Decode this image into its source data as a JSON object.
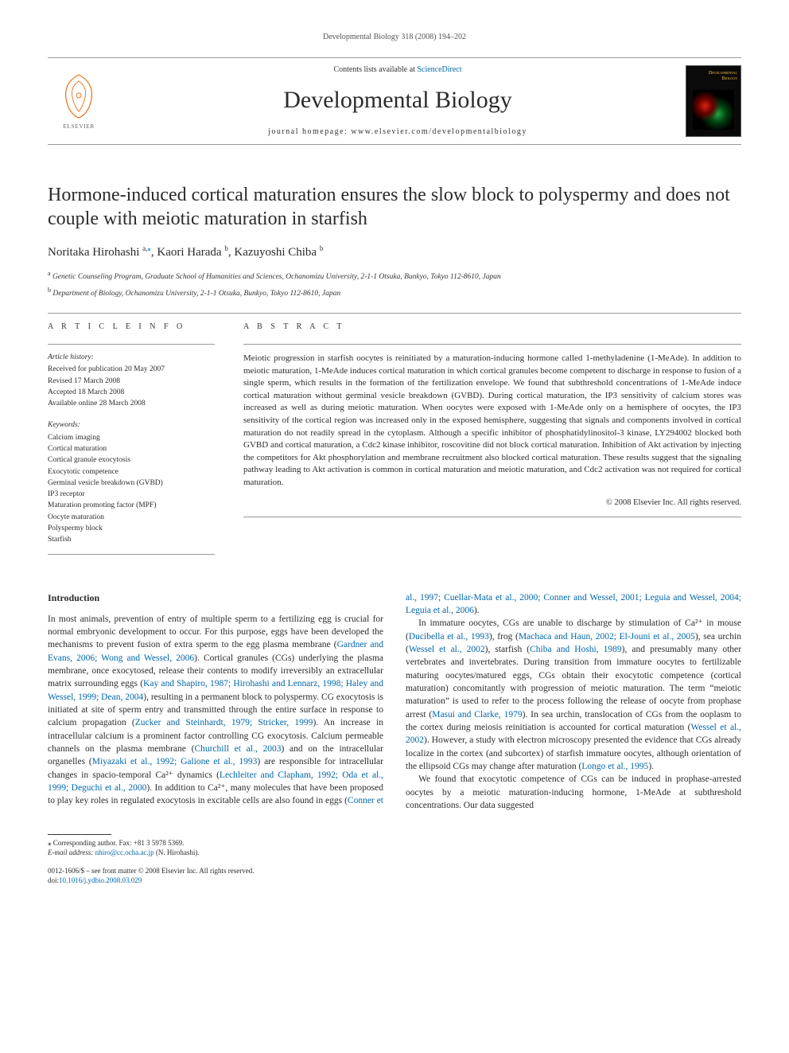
{
  "running_header": "Developmental Biology 318 (2008) 194–202",
  "masthead": {
    "contents_prefix": "Contents lists available at ",
    "contents_link": "ScienceDirect",
    "journal_name": "Developmental Biology",
    "homepage_prefix": "journal homepage: ",
    "homepage": "www.elsevier.com/developmentalbiology",
    "publisher_logo_label": "ELSEVIER",
    "cover_title_line1": "Developmental",
    "cover_title_line2": "Biology"
  },
  "article": {
    "title": "Hormone-induced cortical maturation ensures the slow block to polyspermy and does not couple with meiotic maturation in starfish",
    "authors_html": "Noritaka Hirohashi <sup>a,</sup><sup class=\"corr\">⁎</sup>, Kaori Harada <sup>b</sup>, Kazuyoshi Chiba <sup>b</sup>",
    "affiliations": [
      {
        "sup": "a",
        "text": "Genetic Counseling Program, Graduate School of Humanities and Sciences, Ochanomizu University, 2-1-1 Otsuka, Bunkyo, Tokyo 112-8610, Japan"
      },
      {
        "sup": "b",
        "text": "Department of Biology, Ochanomizu University, 2-1-1 Otsuka, Bunkyo, Tokyo 112-8610, Japan"
      }
    ]
  },
  "article_info": {
    "heading": "A R T I C L E   I N F O",
    "history_label": "Article history:",
    "history": [
      "Received for publication 20 May 2007",
      "Revised 17 March 2008",
      "Accepted 18 March 2008",
      "Available online 28 March 2008"
    ],
    "keywords_label": "Keywords:",
    "keywords": [
      "Calcium imaging",
      "Cortical maturation",
      "Cortical granule exocytosis",
      "Exocytotic competence",
      "Germinal vesicle breakdown (GVBD)",
      "IP3 receptor",
      "Maturation promoting factor (MPF)",
      "Oocyte maturation",
      "Polyspermy block",
      "Starfish"
    ]
  },
  "abstract": {
    "heading": "A B S T R A C T",
    "text": "Meiotic progression in starfish oocytes is reinitiated by a maturation-inducing hormone called 1-methyladenine (1-MeAde). In addition to meiotic maturation, 1-MeAde induces cortical maturation in which cortical granules become competent to discharge in response to fusion of a single sperm, which results in the formation of the fertilization envelope. We found that subthreshold concentrations of 1-MeAde induce cortical maturation without germinal vesicle breakdown (GVBD). During cortical maturation, the IP3 sensitivity of calcium stores was increased as well as during meiotic maturation. When oocytes were exposed with 1-MeAde only on a hemisphere of oocytes, the IP3 sensitivity of the cortical region was increased only in the exposed hemisphere, suggesting that signals and components involved in cortical maturation do not readily spread in the cytoplasm. Although a specific inhibitor of phosphatidylinositol-3 kinase, LY294002 blocked both GVBD and cortical maturation, a Cdc2 kinase inhibitor, roscovitine did not block cortical maturation. Inhibition of Akt activation by injecting the competitors for Akt phosphorylation and membrane recruitment also blocked cortical maturation. These results suggest that the signaling pathway leading to Akt activation is common in cortical maturation and meiotic maturation, and Cdc2 activation was not required for cortical maturation.",
    "copyright": "© 2008 Elsevier Inc. All rights reserved."
  },
  "body": {
    "intro_heading": "Introduction",
    "p1_a": "In most animals, prevention of entry of multiple sperm to a fertilizing egg is crucial for normal embryonic development to occur. For this purpose, eggs have been developed the mechanisms to prevent fusion of extra sperm to the egg plasma membrane (",
    "r1": "Gardner and Evans, 2006; Wong and Wessel, 2006",
    "p1_b": "). Cortical granules (CGs) underlying the plasma membrane, once exocytosed, release their contents to modify irreversibly an extracellular matrix surrounding eggs (",
    "r2": "Kay and Shapiro, 1987; Hirohashi and Lennarz, 1998; Haley and Wessel, 1999; Dean, 2004",
    "p1_c": "), resulting in a permanent block to polyspermy. CG exocytosis is initiated at site of sperm entry and transmitted through the entire surface in response to calcium propagation (",
    "r3": "Zucker and Steinhardt, 1979; Stricker, 1999",
    "p1_d": "). An increase in intracellular calcium is a prominent factor controlling CG exocytosis. Calcium permeable channels on the plasma membrane (",
    "r4": "Churchill et al., 2003",
    "p1_e": ") and on the intracellular organelles (",
    "r5": "Miyazaki et al., 1992; Galione et al., 1993",
    "p1_f": ") are responsible for intracellular changes in spacio-temporal Ca²⁺ dynamics (",
    "r6": "Lechleiter and Clapham, 1992; Oda et al., 1999; Deguchi et al., 2000",
    "p1_g": "). In addition to Ca²⁺, many molecules that have been proposed to play key roles in regulated exocytosis in excitable cells are also found in eggs (",
    "r7": "Conner et al., 1997; Cuellar-Mata et al., 2000; Conner and Wessel, 2001; Leguia and Wessel, 2004; Leguia et al., 2006",
    "p1_h": ").",
    "p2_a": "In immature oocytes, CGs are unable to discharge by stimulation of Ca²⁺ in mouse (",
    "r8": "Ducibella et al., 1993",
    "p2_b": "), frog (",
    "r9": "Machaca and Haun, 2002; El-Jouni et al., 2005",
    "p2_c": "), sea urchin (",
    "r10": "Wessel et al., 2002",
    "p2_d": "), starfish (",
    "r11": "Chiba and Hoshi, 1989",
    "p2_e": "), and presumably many other vertebrates and invertebrates. During transition from immature oocytes to fertilizable maturing oocytes/matured eggs, CGs obtain their exocytotic competence (cortical maturation) concomitantly with progression of meiotic maturation. The term “meiotic maturation” is used to refer to the process following the release of oocyte from prophase arrest (",
    "r12": "Masui and Clarke, 1979",
    "p2_f": "). In sea urchin, translocation of CGs from the ooplasm to the cortex during meiosis reinitiation is accounted for cortical maturation (",
    "r13": "Wessel et al., 2002",
    "p2_g": "). However, a study with electron microscopy presented the evidence that CGs already localize in the cortex (and subcortex) of starfish immature oocytes, although orientation of the ellipsoid CGs may change after maturation (",
    "r14": "Longo et al., 1995",
    "p2_h": ").",
    "p3": "We found that exocytotic competence of CGs can be induced in prophase-arrested oocytes by a meiotic maturation-inducing hormone, 1-MeAde at subthreshold concentrations. Our data suggested"
  },
  "footer": {
    "corr_label": "⁎ Corresponding author. Fax: +81 3 5978 5369.",
    "email_label": "E-mail address:",
    "email": "nhiro@cc.ocha.ac.jp",
    "email_person": "(N. Hirohashi).",
    "issn_line": "0012-1606/$ – see front matter © 2008 Elsevier Inc. All rights reserved.",
    "doi_label": "doi:",
    "doi": "10.1016/j.ydbio.2008.03.029"
  },
  "colors": {
    "link": "#0066aa",
    "elsevier_orange": "#e9711c",
    "text": "#2b2b2b",
    "rule": "#999999"
  }
}
